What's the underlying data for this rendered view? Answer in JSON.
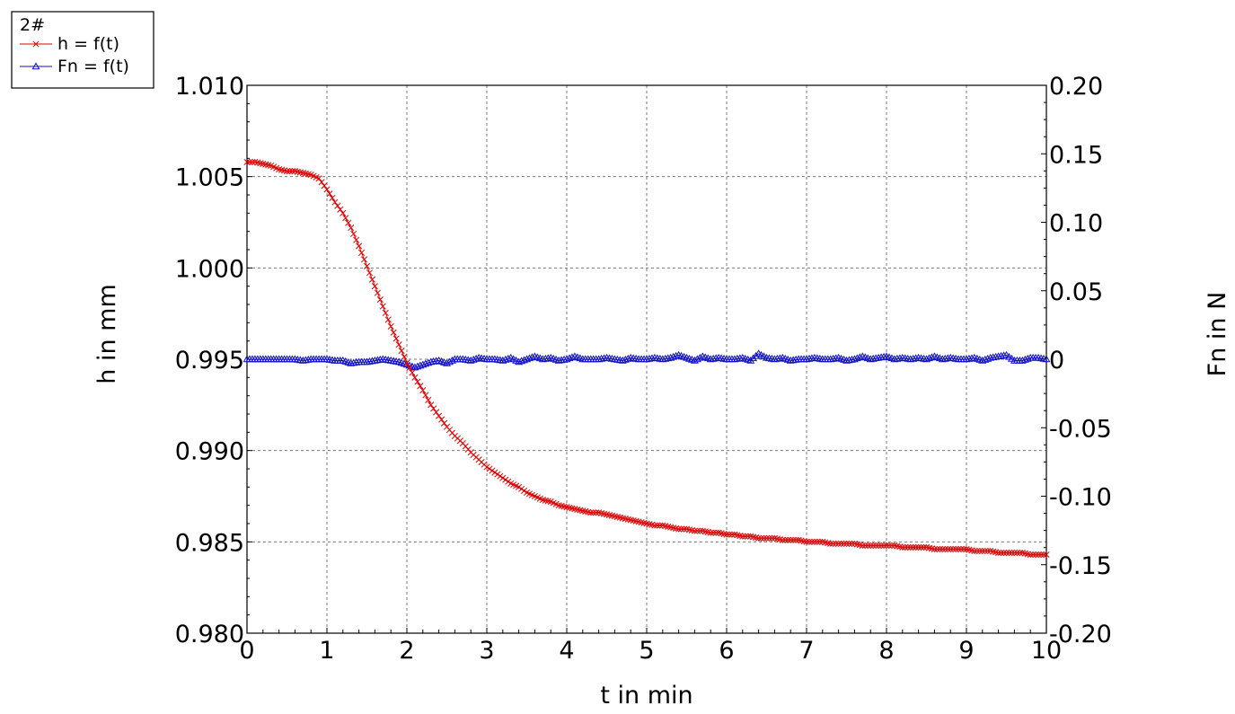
{
  "chart_data": {
    "type": "line",
    "legend": {
      "title": "2#",
      "placement": "top-left",
      "entries": [
        {
          "series": 0,
          "label": "h = f(t)"
        },
        {
          "series": 1,
          "label": "Fn = f(t)"
        }
      ]
    },
    "xlabel": "t in min",
    "ylabel": "h in mm",
    "ylabel_right": "Fn in N",
    "xlim": [
      0,
      10
    ],
    "ylim": [
      0.98,
      1.01
    ],
    "ylim_right": [
      -0.2,
      0.2
    ],
    "x_ticks": [
      "0",
      "1",
      "2",
      "3",
      "4",
      "5",
      "6",
      "7",
      "8",
      "9",
      "10"
    ],
    "y_ticks": [
      "0.980",
      "0.985",
      "0.990",
      "0.995",
      "1.000",
      "1.005",
      "1.010"
    ],
    "y_ticks_right": [
      "-0.20",
      "-0.15",
      "-0.10",
      "-0.05",
      "0",
      "0.05",
      "0.10",
      "0.15",
      "0.20"
    ],
    "grid": true,
    "x": [
      0.0,
      0.1,
      0.2,
      0.3,
      0.4,
      0.5,
      0.6,
      0.7,
      0.8,
      0.9,
      1.0,
      1.1,
      1.2,
      1.3,
      1.4,
      1.5,
      1.6,
      1.7,
      1.8,
      1.9,
      2.0,
      2.1,
      2.2,
      2.3,
      2.4,
      2.5,
      2.6,
      2.7,
      2.8,
      2.9,
      3.0,
      3.1,
      3.2,
      3.3,
      3.4,
      3.5,
      3.6,
      3.7,
      3.8,
      3.9,
      4.0,
      4.1,
      4.2,
      4.3,
      4.4,
      4.5,
      4.6,
      4.7,
      4.8,
      4.9,
      5.0,
      5.1,
      5.2,
      5.3,
      5.4,
      5.5,
      5.6,
      5.7,
      5.8,
      5.9,
      6.0,
      6.1,
      6.2,
      6.3,
      6.4,
      6.5,
      6.6,
      6.7,
      6.8,
      6.9,
      7.0,
      7.1,
      7.2,
      7.3,
      7.4,
      7.5,
      7.6,
      7.7,
      7.8,
      7.9,
      8.0,
      8.1,
      8.2,
      8.3,
      8.4,
      8.5,
      8.6,
      8.7,
      8.8,
      8.9,
      9.0,
      9.1,
      9.2,
      9.3,
      9.4,
      9.5,
      9.6,
      9.7,
      9.8,
      9.9,
      10.0
    ],
    "series": [
      {
        "name": "h = f(t)",
        "axis": "left",
        "color": "#e00000",
        "marker": "x",
        "values": [
          1.0058,
          1.0058,
          1.0057,
          1.0056,
          1.0054,
          1.0053,
          1.0053,
          1.0052,
          1.0051,
          1.0049,
          1.0043,
          1.0036,
          1.003,
          1.0022,
          1.0012,
          1.0001,
          0.999,
          0.9979,
          0.9968,
          0.9958,
          0.9948,
          0.994,
          0.9933,
          0.9925,
          0.9919,
          0.9913,
          0.9908,
          0.9904,
          0.9899,
          0.9895,
          0.9891,
          0.9888,
          0.9885,
          0.9882,
          0.988,
          0.9877,
          0.9875,
          0.9873,
          0.9872,
          0.987,
          0.9869,
          0.9868,
          0.9867,
          0.9866,
          0.9866,
          0.9865,
          0.9864,
          0.9863,
          0.9862,
          0.9861,
          0.986,
          0.9859,
          0.9859,
          0.9858,
          0.9857,
          0.9857,
          0.9856,
          0.9856,
          0.9855,
          0.9855,
          0.9854,
          0.9854,
          0.9853,
          0.9853,
          0.9852,
          0.9852,
          0.9852,
          0.9851,
          0.9851,
          0.9851,
          0.985,
          0.985,
          0.985,
          0.9849,
          0.9849,
          0.9849,
          0.9849,
          0.9848,
          0.9848,
          0.9848,
          0.9848,
          0.9848,
          0.9847,
          0.9847,
          0.9847,
          0.9847,
          0.9846,
          0.9846,
          0.9846,
          0.9846,
          0.9846,
          0.9845,
          0.9845,
          0.9845,
          0.9844,
          0.9844,
          0.9844,
          0.9844,
          0.9843,
          0.9843,
          0.9843
        ]
      },
      {
        "name": "Fn = f(t)",
        "axis": "right",
        "color": "#1010c8",
        "marker": "triangle",
        "values": [
          0.0,
          0.0,
          0.0,
          0.0,
          0.0,
          0.0,
          0.0,
          -0.001,
          0.0,
          0.0,
          0.0,
          -0.001,
          -0.001,
          -0.003,
          -0.002,
          -0.002,
          -0.001,
          0.0,
          -0.001,
          -0.002,
          -0.004,
          -0.006,
          -0.004,
          -0.002,
          -0.001,
          -0.003,
          0.0,
          0.0,
          -0.001,
          0.001,
          0.0,
          0.0,
          -0.001,
          0.001,
          -0.002,
          0.0,
          0.002,
          0.0,
          0.001,
          -0.001,
          0.0,
          0.002,
          0.0,
          0.0,
          0.0,
          0.001,
          0.0,
          -0.001,
          0.001,
          0.0,
          0.0,
          0.001,
          0.0,
          0.001,
          0.003,
          0.001,
          -0.001,
          0.002,
          0.0,
          0.001,
          0.0,
          0.0,
          0.001,
          -0.001,
          0.004,
          0.001,
          0.0,
          0.001,
          -0.001,
          0.0,
          0.0,
          0.001,
          0.0,
          0.0,
          0.001,
          -0.001,
          0.0,
          0.002,
          0.0,
          0.001,
          0.002,
          0.0,
          0.001,
          0.0,
          0.001,
          0.0,
          0.002,
          0.0,
          0.001,
          0.0,
          0.0,
          0.001,
          -0.001,
          0.001,
          0.002,
          0.003,
          -0.001,
          -0.001,
          0.001,
          0.001,
          0.0
        ]
      }
    ]
  }
}
